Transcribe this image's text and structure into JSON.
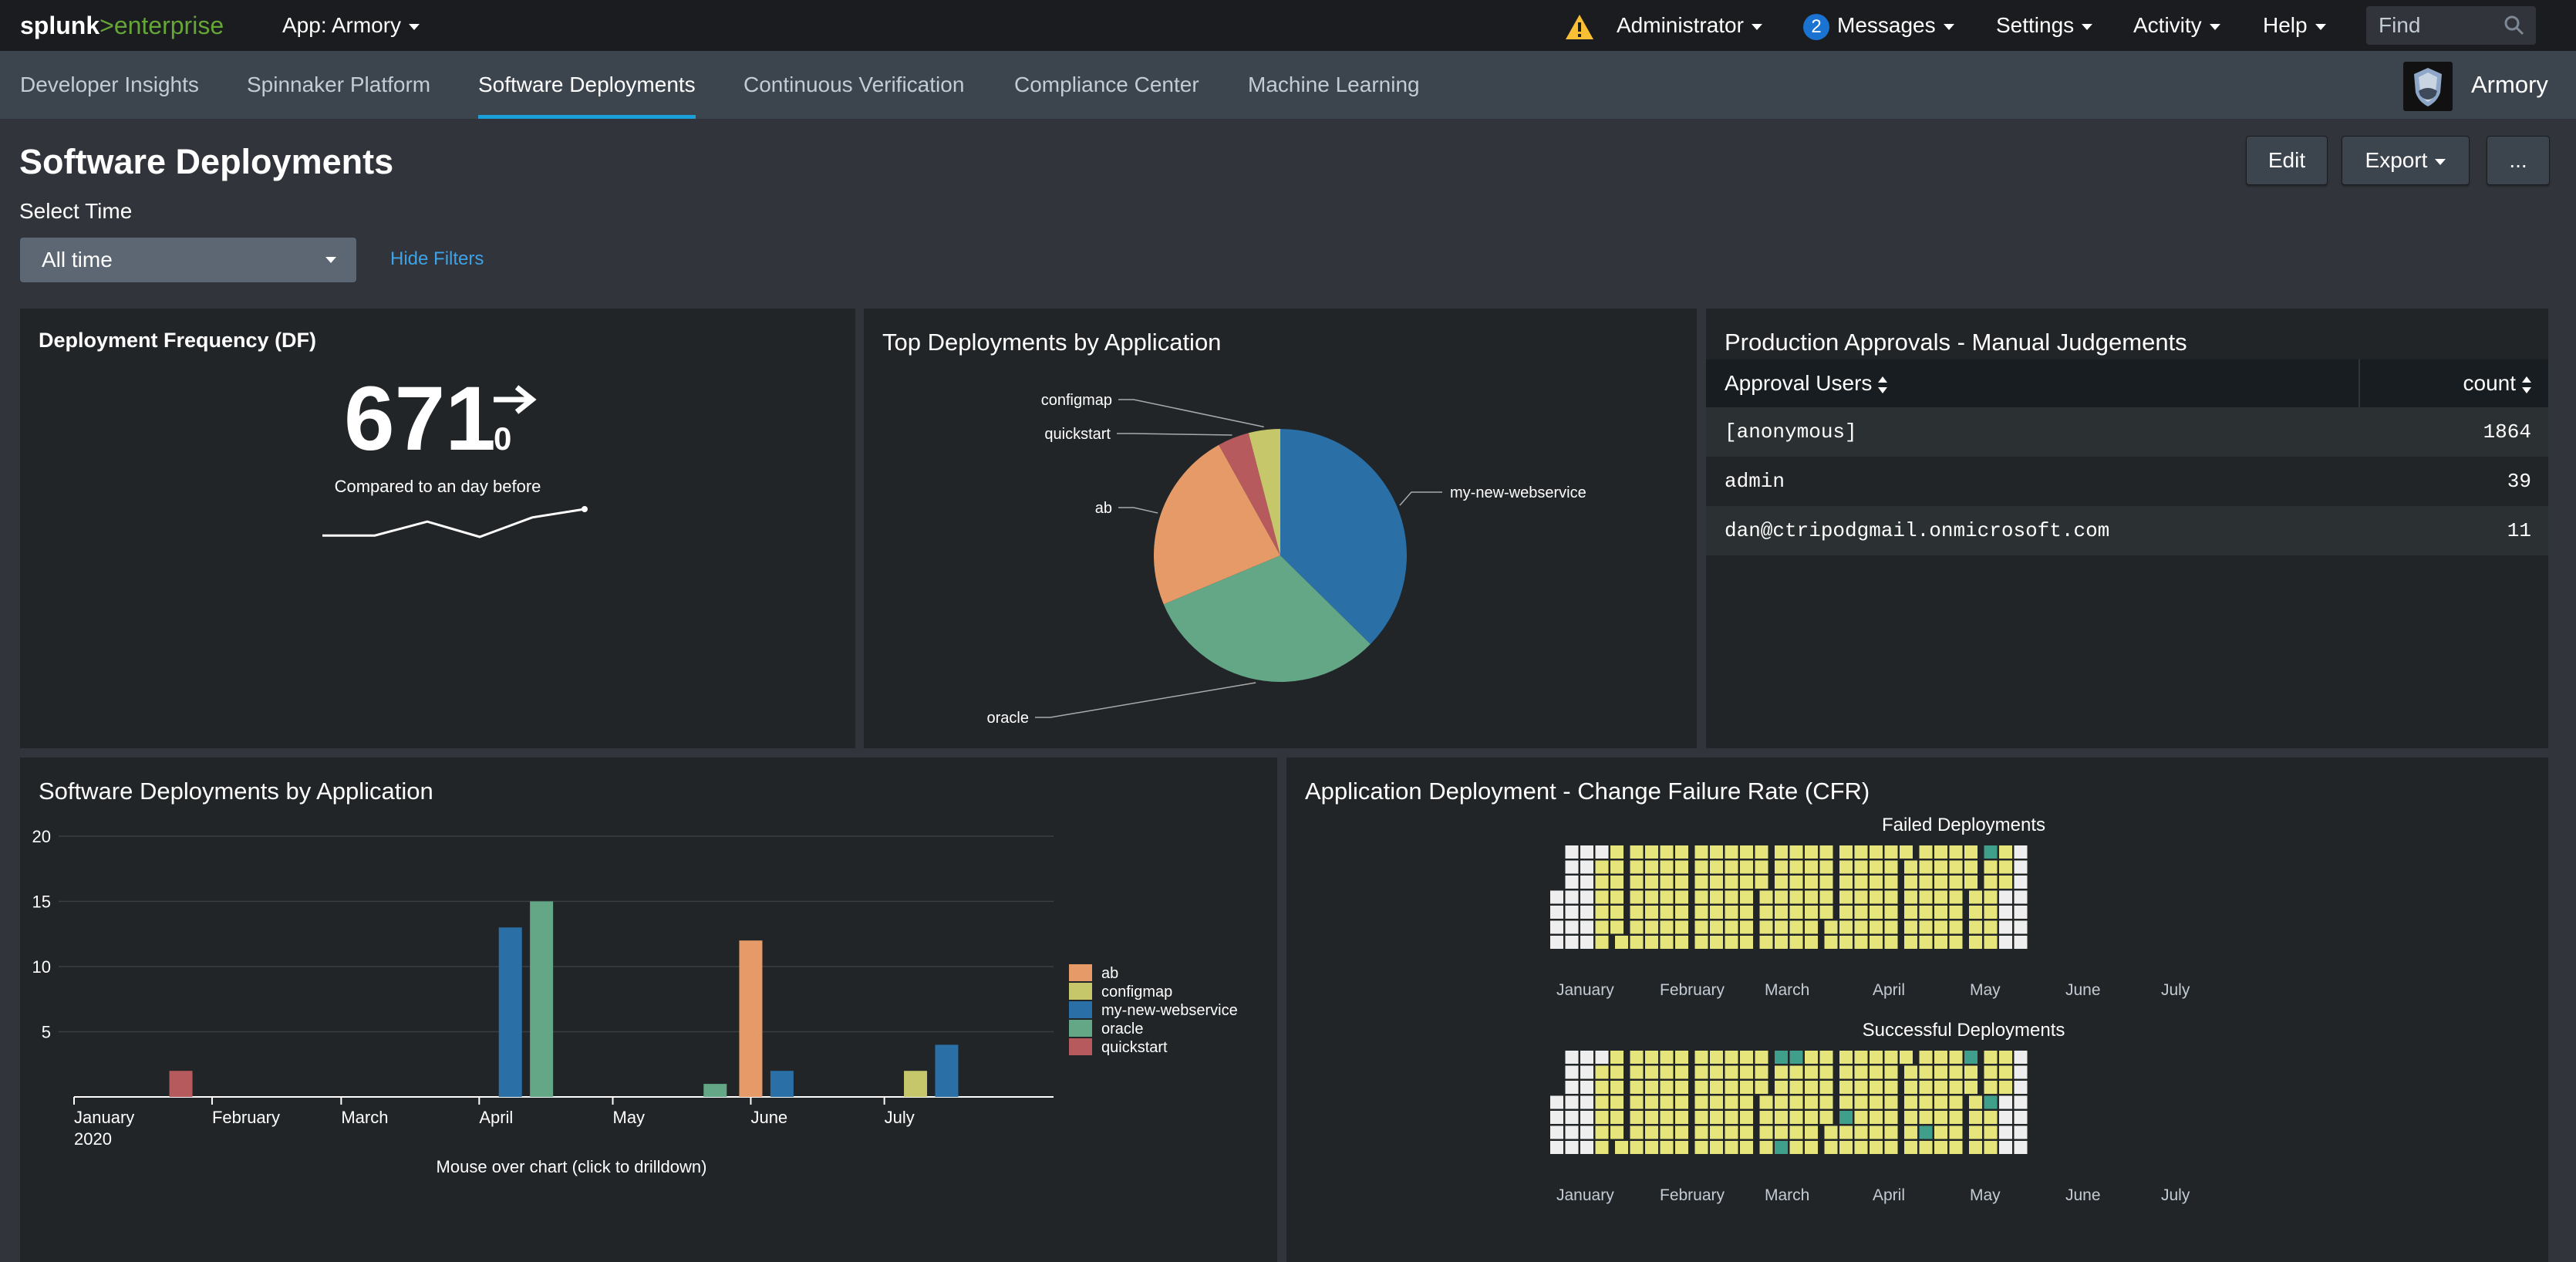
{
  "topbar": {
    "logo_splunk": "splunk",
    "logo_gt": ">",
    "logo_enterprise": "enterprise",
    "app_menu": "App: Armory",
    "user_menu": "Administrator",
    "messages_count": "2",
    "messages_menu": "Messages",
    "settings_menu": "Settings",
    "activity_menu": "Activity",
    "help_menu": "Help",
    "find_placeholder": "Find"
  },
  "nav": {
    "tabs": [
      {
        "label": "Developer Insights"
      },
      {
        "label": "Spinnaker Platform"
      },
      {
        "label": "Software Deployments"
      },
      {
        "label": "Continuous Verification"
      },
      {
        "label": "Compliance Center"
      },
      {
        "label": "Machine Learning"
      }
    ],
    "active_tab": "Software Deployments",
    "brand": "Armory"
  },
  "dashboard": {
    "title": "Software Deployments",
    "edit_label": "Edit",
    "export_label": "Export",
    "more_label": "...",
    "select_time_label": "Select Time",
    "time_value": "All time",
    "hide_filters": "Hide Filters"
  },
  "panels": {
    "deployment_frequency": {
      "title": "Deployment Frequency (DF)",
      "value": "671",
      "delta": "0",
      "compare_text": "Compared to an day before",
      "sparkline": [
        0.05,
        0.05,
        0.55,
        0.0,
        0.7,
        1.0
      ]
    },
    "top_deployments": {
      "title": "Top Deployments by Application"
    },
    "approvals": {
      "title": "Production Approvals - Manual Judgements",
      "columns": [
        "Approval Users",
        "count"
      ],
      "rows": [
        {
          "user": "[anonymous]",
          "count": "1864"
        },
        {
          "user": "admin",
          "count": "39"
        },
        {
          "user": "dan@ctripodgmail.onmicrosoft.com",
          "count": "11"
        }
      ]
    },
    "by_application": {
      "title": "Software Deployments by Application",
      "footer": "Mouse over chart (click to drilldown)"
    },
    "cfr": {
      "title": "Application Deployment - Change Failure Rate (CFR)",
      "failed_title": "Failed Deployments",
      "success_title": "Successful Deployments",
      "months": [
        "January",
        "February",
        "March",
        "April",
        "May",
        "June",
        "July"
      ]
    }
  },
  "colors": {
    "ab": "#e59a67",
    "configmap": "#c6c76a",
    "my-new-webservice": "#2a6fa6",
    "oracle": "#63a786",
    "quickstart": "#b65a5e",
    "cal_yellow": "#e5e57b",
    "cal_white": "#eeeeee",
    "cal_teal": "#3f9f8a",
    "link": "#3ea2e6"
  },
  "chart_data": [
    {
      "type": "pie",
      "labels": [
        "my-new-webservice",
        "oracle",
        "ab",
        "quickstart",
        "configmap"
      ],
      "values": [
        37,
        31,
        23,
        4,
        4
      ]
    },
    {
      "type": "bar",
      "x_ticks": [
        "January",
        "February",
        "March",
        "April",
        "May",
        "June",
        "July"
      ],
      "x_tick_year": "2020",
      "ylim": [
        0,
        20
      ],
      "y_ticks": [
        5,
        10,
        15,
        20
      ],
      "series": [
        {
          "name": "ab",
          "points": [
            {
              "date": "2020-06-01",
              "value": 12
            }
          ]
        },
        {
          "name": "configmap",
          "points": [
            {
              "date": "2020-07-08",
              "value": 2
            }
          ]
        },
        {
          "name": "my-new-webservice",
          "points": [
            {
              "date": "2020-04-08",
              "value": 13
            },
            {
              "date": "2020-06-08",
              "value": 2
            },
            {
              "date": "2020-07-15",
              "value": 4
            }
          ]
        },
        {
          "name": "oracle",
          "points": [
            {
              "date": "2020-04-15",
              "value": 15
            },
            {
              "date": "2020-05-24",
              "value": 1
            }
          ]
        },
        {
          "name": "quickstart",
          "points": [
            {
              "date": "2020-01-25",
              "value": 2
            }
          ]
        }
      ]
    }
  ]
}
